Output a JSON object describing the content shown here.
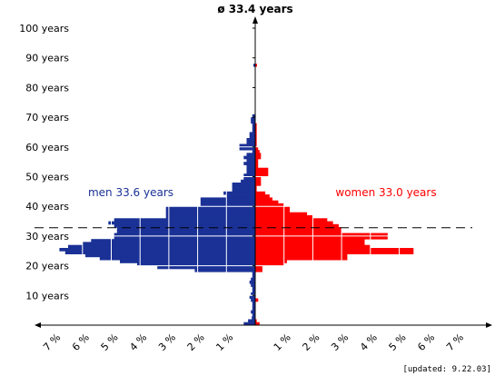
{
  "chart_data": {
    "type": "population-pyramid",
    "title": "ø 33.4 years",
    "x_unit": "%",
    "xlim_left": [
      0,
      7
    ],
    "xlim_right": [
      0,
      7
    ],
    "x_ticks_left": [
      "7 %",
      "6 %",
      "5 %",
      "4 %",
      "3 %",
      "2 %",
      "1 %"
    ],
    "x_ticks_right": [
      "1 %",
      "2 %",
      "3 %",
      "4 %",
      "5 %",
      "6 %",
      "7 %"
    ],
    "y_tick_labels": [
      "10 years",
      "20 years",
      "30 years",
      "40 years",
      "50 years",
      "60 years",
      "70 years",
      "80 years",
      "90 years",
      "100 years"
    ],
    "ylim": [
      0,
      100
    ],
    "grid": "white lines inside bars at each 1% and every 10 years",
    "mean_age_line": 33.4,
    "series": [
      {
        "name": "men 33.6 years",
        "color": "#1a3196",
        "age_start": 0,
        "values": [
          0.4,
          0.25,
          0.12,
          0.1,
          0.15,
          0.1,
          0.1,
          0.1,
          0.15,
          0.2,
          0.15,
          0.1,
          0.1,
          0.15,
          0.2,
          0.15,
          0.1,
          0.1,
          2.1,
          3.4,
          4.1,
          4.7,
          5.4,
          5.9,
          6.6,
          6.8,
          6.5,
          6.0,
          5.7,
          4.9,
          4.9,
          4.8,
          4.8,
          4.9,
          5.1,
          4.9,
          3.1,
          3.1,
          3.1,
          3.1,
          1.9,
          1.9,
          1.9,
          1.0,
          1.1,
          0.8,
          0.8,
          0.8,
          0.5,
          0.4,
          0.4,
          0.3,
          0.3,
          0.3,
          0.4,
          0.3,
          0.4,
          0.3,
          0.1,
          0.55,
          0.55,
          0.3,
          0.3,
          0.2,
          0.2,
          0.1,
          0.1,
          0.1,
          0.15,
          0.15,
          0.1
        ]
      },
      {
        "name": "women 33.0 years",
        "color": "#ff0000",
        "age_start": 0,
        "values": [
          0.15,
          0.05,
          0.0,
          0.0,
          0.0,
          0.0,
          0.0,
          0.0,
          0.1,
          0.0,
          0.0,
          0.0,
          0.0,
          0.0,
          0.0,
          0.0,
          0.0,
          0.0,
          0.25,
          0.25,
          1.0,
          1.1,
          3.2,
          3.2,
          5.5,
          5.5,
          4.0,
          3.8,
          3.8,
          4.6,
          4.6,
          3.0,
          3.0,
          2.9,
          2.7,
          2.5,
          2.0,
          1.8,
          1.2,
          1.2,
          1.0,
          0.8,
          0.6,
          0.5,
          0.35,
          0.05,
          0.05,
          0.2,
          0.2,
          0.2,
          0.45,
          0.45,
          0.45,
          0.1,
          0.1,
          0.1,
          0.2,
          0.2,
          0.15,
          0.1,
          0.05,
          0.05,
          0.05,
          0.05,
          0.05,
          0.05,
          0.05,
          0.05
        ]
      }
    ],
    "stray_marks": [
      {
        "age": 87,
        "value": 0.05,
        "side": "left"
      },
      {
        "age": 87,
        "value": 0.05,
        "side": "right"
      },
      {
        "age": 8,
        "value": 0.1,
        "side": "right"
      }
    ]
  },
  "footer": {
    "updated": "[updated: 9.22.03]"
  }
}
